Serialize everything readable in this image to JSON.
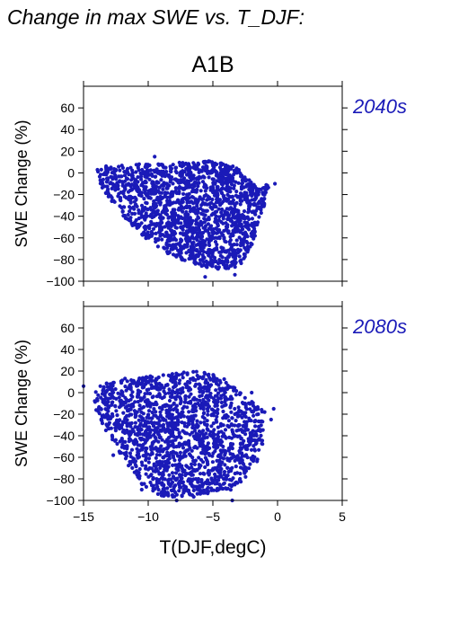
{
  "figure_title": "Change in max SWE vs. T_DJF:",
  "scenario": "A1B",
  "point_color": "#1a1ab8",
  "period_label_color": "#1a1ab8",
  "chart_data": [
    {
      "type": "scatter",
      "panel": "2040s",
      "period_label": "2040s",
      "xlabel": "",
      "ylabel": "SWE Change (%)",
      "xlim": [
        -15,
        5
      ],
      "ylim": [
        -100,
        80
      ],
      "x_ticks": [
        -15,
        -10,
        -5,
        0,
        5
      ],
      "x_tick_labels_shown": false,
      "y_ticks": [
        -100,
        -80,
        -60,
        -40,
        -20,
        0,
        20,
        40,
        60
      ],
      "y_tick_labels": [
        "−100",
        "−80",
        "−60",
        "−40",
        "−20",
        "0",
        "20",
        "40",
        "60"
      ],
      "grid": false,
      "point_cloud_envelope": {
        "x": [
          -14.0,
          -13.0,
          -11.0,
          -9.0,
          -7.0,
          -5.5,
          -4.0,
          -3.0,
          -2.2,
          -1.6,
          -1.0,
          -0.5,
          -1.2,
          -2.0,
          -2.8,
          -3.6,
          -4.5,
          -6.0,
          -7.8,
          -9.5,
          -11.0,
          -12.5,
          -13.8
        ],
        "y": [
          4,
          7,
          9,
          9,
          10,
          12,
          8,
          5,
          -4,
          -14,
          -12,
          -5,
          -38,
          -68,
          -85,
          -88,
          -89,
          -86,
          -79,
          -68,
          -52,
          -32,
          -10
        ]
      },
      "outlier_points": {
        "x": [
          -9.5,
          -0.2,
          -1.5,
          -1.0,
          -2.5,
          -2.3,
          -5.6,
          -3.3
        ],
        "y": [
          15,
          -10,
          -28,
          -20,
          -42,
          -68,
          -96,
          -94
        ]
      }
    },
    {
      "type": "scatter",
      "panel": "2080s",
      "period_label": "2080s",
      "xlabel": "T(DJF,degC)",
      "ylabel": "SWE Change (%)",
      "xlim": [
        -15,
        5
      ],
      "ylim": [
        -100,
        80
      ],
      "x_ticks": [
        -15,
        -10,
        -5,
        0,
        5
      ],
      "x_tick_labels": [
        "−15",
        "−10",
        "−5",
        "0",
        "5"
      ],
      "y_ticks": [
        -100,
        -80,
        -60,
        -40,
        -20,
        0,
        20,
        40,
        60
      ],
      "y_tick_labels": [
        "−100",
        "−80",
        "−60",
        "−40",
        "−20",
        "0",
        "20",
        "40",
        "60"
      ],
      "grid": false,
      "point_cloud_envelope": {
        "x": [
          -14.0,
          -13.0,
          -11.5,
          -10.0,
          -8.0,
          -6.5,
          -5.0,
          -4.0,
          -3.0,
          -2.0,
          -1.2,
          -1.0,
          -1.5,
          -2.5,
          -3.5,
          -5.0,
          -7.0,
          -9.0,
          -10.5,
          -12.0,
          -13.3,
          -14.2
        ],
        "y": [
          5,
          10,
          14,
          15,
          18,
          20,
          18,
          12,
          2,
          -8,
          -15,
          -40,
          -65,
          -80,
          -90,
          -95,
          -98,
          -96,
          -85,
          -60,
          -35,
          -12
        ]
      },
      "outlier_points": {
        "x": [
          -15.0,
          -13.2,
          -12.7,
          -2.0,
          -1.0,
          -0.5,
          -0.3,
          -1.5,
          -2.0,
          -3.5,
          -7.8,
          -10.5
        ],
        "y": [
          6,
          -20,
          -58,
          0,
          -18,
          -25,
          -15,
          -35,
          -62,
          -100,
          -100,
          -90
        ]
      }
    }
  ]
}
